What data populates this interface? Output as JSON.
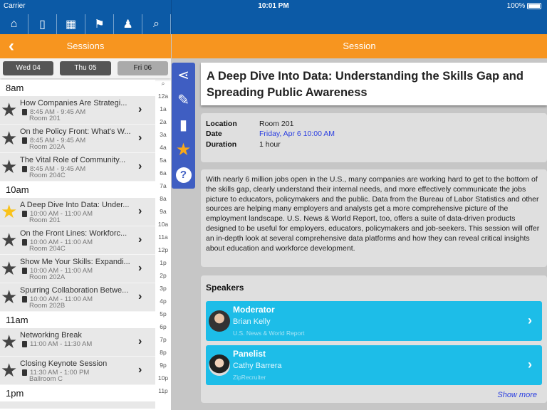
{
  "status": {
    "carrier": "Carrier",
    "time": "10:01 PM",
    "battery": "100%",
    "battery_level": 1.0
  },
  "nav": {
    "icons": [
      "home-icon",
      "mobile-icon",
      "grid-icon",
      "presentation-icon",
      "person-icon",
      "search-icon"
    ],
    "glyphs": [
      "⌂",
      "▯",
      "▦",
      "⚑",
      "♟",
      "⌕"
    ]
  },
  "left_header": {
    "title": "Sessions",
    "back": "‹"
  },
  "right_header": {
    "title": "Session"
  },
  "days": [
    {
      "label": "Wed 04",
      "selected": false
    },
    {
      "label": "Thu 05",
      "selected": false
    },
    {
      "label": "Fri 06",
      "selected": true
    }
  ],
  "sessions": {
    "h8": "8am",
    "h10": "10am",
    "h11": "11am",
    "h1": "1pm",
    "rows": [
      {
        "title": "How Companies Are Strategi...",
        "time": "8:45 AM - 9:45 AM",
        "room": "Room 201",
        "fav": false
      },
      {
        "title": "On the Policy Front: What's W...",
        "time": "8:45 AM - 9:45 AM",
        "room": "Room 202A",
        "fav": false
      },
      {
        "title": "The Vital Role of Community...",
        "time": "8:45 AM - 9:45 AM",
        "room": "Room 204C",
        "fav": false
      },
      {
        "title": "A Deep Dive Into Data: Under...",
        "time": "10:00 AM - 11:00 AM",
        "room": "Room 201",
        "fav": true
      },
      {
        "title": "On the Front Lines: Workforc...",
        "time": "10:00 AM - 11:00 AM",
        "room": "Room 204C",
        "fav": false
      },
      {
        "title": "Show Me Your Skills: Expandi...",
        "time": "10:00 AM - 11:00 AM",
        "room": "Room 202A",
        "fav": false
      },
      {
        "title": "Spurring Collaboration Betwe...",
        "time": "10:00 AM - 11:00 AM",
        "room": "Room 202B",
        "fav": false
      },
      {
        "title": "Networking Break",
        "time": "11:00 AM - 11:30 AM",
        "room": "",
        "fav": false
      },
      {
        "title": "Closing Keynote Session",
        "time": "11:30 AM - 1:00 PM",
        "room": "Ballroom C",
        "fav": false
      }
    ]
  },
  "index": [
    "12a",
    "1a",
    "2a",
    "3a",
    "4a",
    "5a",
    "6a",
    "7a",
    "8a",
    "9a",
    "10a",
    "11a",
    "12p",
    "1p",
    "2p",
    "3p",
    "4p",
    "5p",
    "6p",
    "7p",
    "8p",
    "9p",
    "10p",
    "11p"
  ],
  "toolbar": [
    "share-icon",
    "pencil-icon",
    "clipboard-icon",
    "star-icon",
    "help-icon"
  ],
  "session": {
    "title": "A Deep Dive Into Data: Understanding the Skills Gap and Spreading Public Awareness",
    "location_label": "Location",
    "location": "Room 201",
    "date_label": "Date",
    "date": "Friday, Apr 6 10:00 AM",
    "duration_label": "Duration",
    "duration": "1 hour",
    "description": "With nearly 6 million jobs open in the U.S., many companies are working hard to get to the bottom of the skills gap, clearly understand their internal needs, and more effectively communicate the jobs picture to educators, policymakers and the public. Data from the Bureau of Labor Statistics and other sources are helping many employers and analysts get a more comprehensive picture of the employment landscape. U.S. News & World Report, too, offers a suite of data-driven products designed to be useful for employers, educators, policymakers and job-seekers. This session will offer an in-depth look at several comprehensive data platforms and how they can reveal critical insights about education and workforce development."
  },
  "speakers": {
    "heading": "Speakers",
    "show_more": "Show more",
    "items": [
      {
        "role": "Moderator",
        "name": "Brian Kelly",
        "org": "U.S. News & World Report"
      },
      {
        "role": "Panelist",
        "name": "Cathy Barrera",
        "org": "ZipRecruiter"
      }
    ]
  },
  "colors": {
    "nav_blue": "#0c5aa6",
    "orange": "#f7951f",
    "toolbar_blue": "#3f5ec2",
    "speaker_cyan": "#1dbde8",
    "favorite": "#f9c21a"
  }
}
